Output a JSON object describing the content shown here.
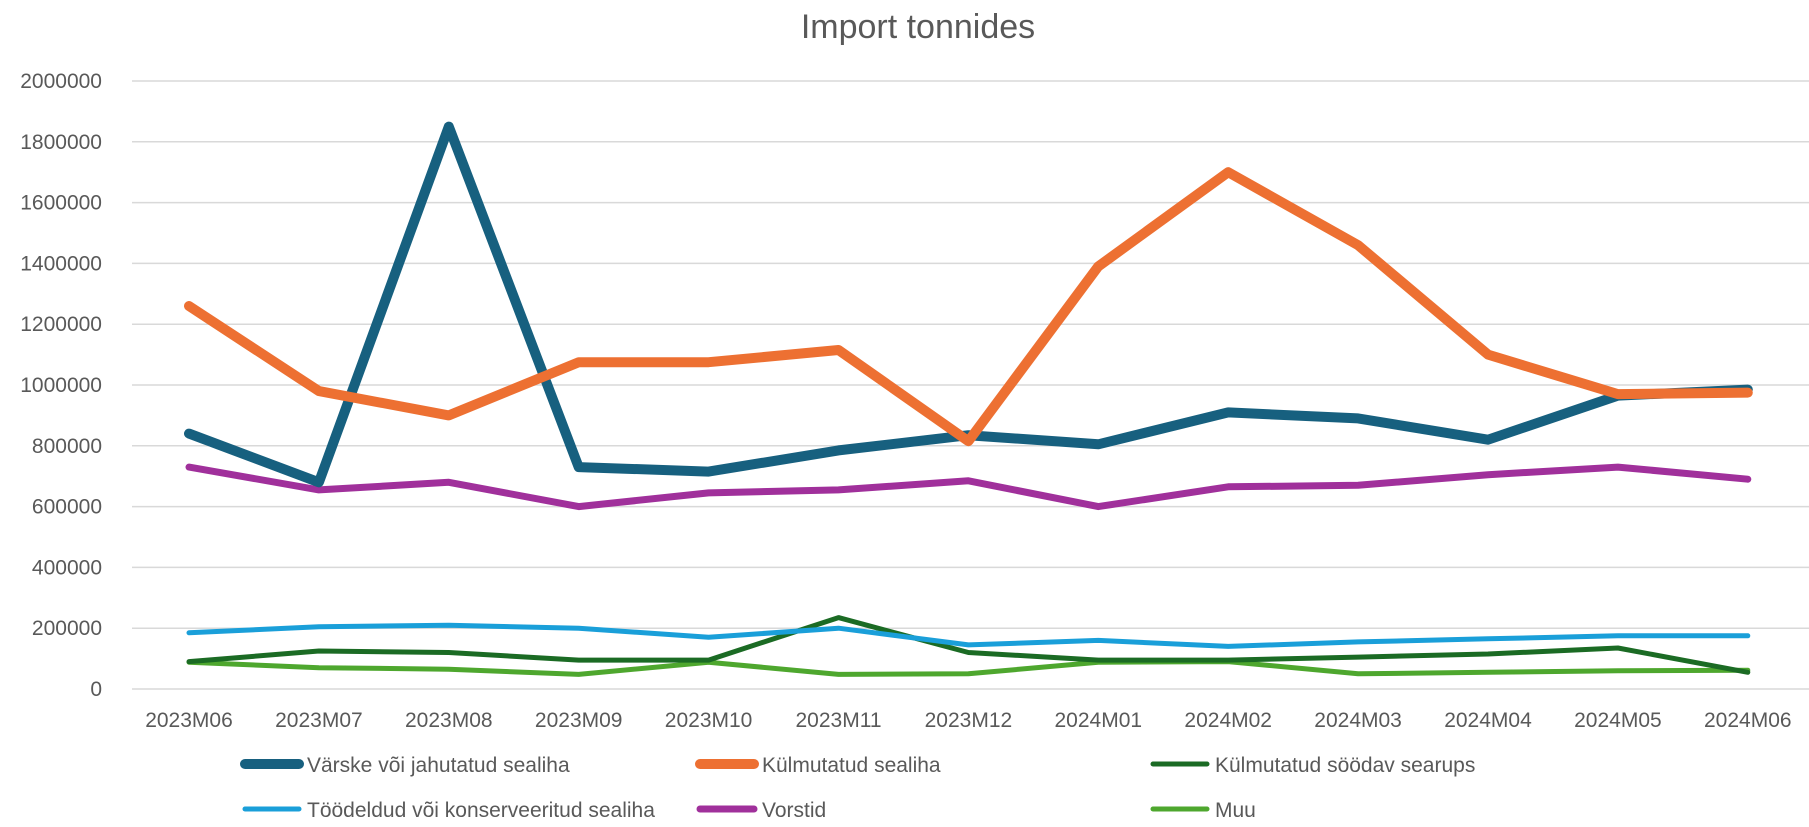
{
  "chart_data": {
    "type": "line",
    "title": "Import tonnides",
    "xlabel": "",
    "ylabel": "",
    "ylim": [
      0,
      2000000
    ],
    "yticks": [
      0,
      200000,
      400000,
      600000,
      800000,
      1000000,
      1200000,
      1400000,
      1600000,
      1800000,
      2000000
    ],
    "grid": true,
    "legend_position": "bottom",
    "categories": [
      "2023M06",
      "2023M07",
      "2023M08",
      "2023M09",
      "2023M10",
      "2023M11",
      "2023M12",
      "2024M01",
      "2024M02",
      "2024M03",
      "2024M04",
      "2024M05",
      "2024M06"
    ],
    "series": [
      {
        "name": "Värske või jahutatud sealiha",
        "color": "#17607f",
        "values": [
          840000,
          680000,
          1850000,
          730000,
          715000,
          785000,
          835000,
          805000,
          910000,
          890000,
          820000,
          965000,
          985000
        ]
      },
      {
        "name": "Külmutatud sealiha",
        "color": "#ed7032",
        "values": [
          1260000,
          980000,
          900000,
          1075000,
          1075000,
          1115000,
          815000,
          1390000,
          1700000,
          1460000,
          1100000,
          970000,
          975000
        ]
      },
      {
        "name": "Külmutatud söödav searups",
        "color": "#1b6b24",
        "values": [
          90000,
          125000,
          120000,
          95000,
          95000,
          235000,
          120000,
          95000,
          95000,
          105000,
          115000,
          135000,
          55000
        ]
      },
      {
        "name": "Töödeldud või konserveeritud sealiha",
        "color": "#1a9fd9",
        "values": [
          185000,
          205000,
          210000,
          200000,
          170000,
          200000,
          145000,
          160000,
          140000,
          155000,
          165000,
          175000,
          175000
        ]
      },
      {
        "name": "Vorstid",
        "color": "#a0309b",
        "values": [
          730000,
          655000,
          680000,
          600000,
          645000,
          655000,
          685000,
          600000,
          665000,
          670000,
          705000,
          730000,
          690000
        ]
      },
      {
        "name": "Muu",
        "color": "#4ea72e",
        "values": [
          88000,
          70000,
          65000,
          48000,
          88000,
          48000,
          50000,
          88000,
          90000,
          50000,
          55000,
          60000,
          62000
        ]
      }
    ]
  }
}
